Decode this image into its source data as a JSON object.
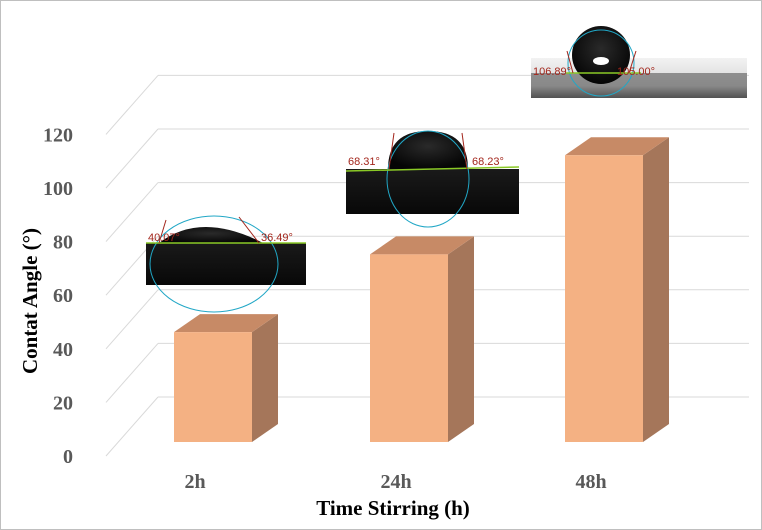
{
  "chart_data": {
    "type": "bar",
    "title": "",
    "xlabel": "Time Stirring (h)",
    "ylabel": "Contat Angle (°)",
    "categories": [
      "2h",
      "24h",
      "48h"
    ],
    "values": [
      41,
      70,
      107
    ],
    "ylim": [
      0,
      120
    ],
    "yticks": [
      "0",
      "20",
      "40",
      "60",
      "80",
      "100",
      "120"
    ],
    "grid": true,
    "legend": "none",
    "bar_color_front": "#f4b183",
    "bar_color_top": "#c78a66",
    "bar_color_side": "#a5765a",
    "annotations": [
      {
        "category": "2h",
        "left_angle": "40.07°",
        "right_angle": "36.49°"
      },
      {
        "category": "24h",
        "left_angle": "68.31°",
        "right_angle": "68.23°"
      },
      {
        "category": "48h",
        "left_angle": "106.89°",
        "right_angle": "105.00°"
      }
    ]
  }
}
